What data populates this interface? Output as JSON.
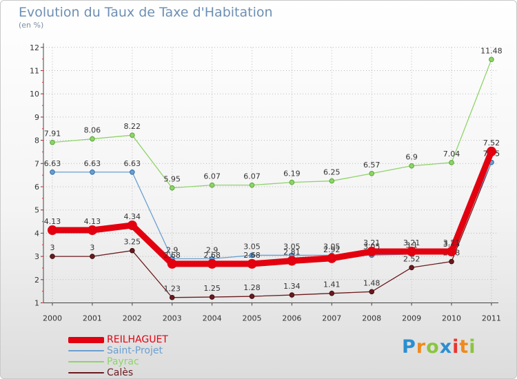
{
  "header": {
    "title": "Evolution du Taux de Taxe d'Habitation",
    "unit": "(en %)"
  },
  "brand": {
    "text": "Proxiti",
    "letters": [
      "P",
      "r",
      "o",
      "x",
      "i",
      "t",
      "i"
    ],
    "colors": [
      "#2a8fd1",
      "#ef8a1c",
      "#8bc53f",
      "#2a8fd1",
      "#e8362e",
      "#ef8a1c",
      "#8bc53f"
    ]
  },
  "chart_data": {
    "type": "line",
    "title": "Evolution du Taux de Taxe d'Habitation",
    "ylabel": "(en %)",
    "xlabel": "",
    "x": [
      "2000",
      "2001",
      "2002",
      "2003",
      "2004",
      "2005",
      "2006",
      "2007",
      "2008",
      "2009",
      "2010",
      "2011"
    ],
    "ylim": [
      1,
      12
    ],
    "yticks": [
      1,
      2,
      3,
      4,
      5,
      6,
      7,
      8,
      9,
      10,
      11,
      12
    ],
    "grid": true,
    "legend": "bottom-left",
    "series": [
      {
        "name": "REILHAGUET",
        "color": "#e3000f",
        "values": [
          4.13,
          4.13,
          4.34,
          2.68,
          2.68,
          2.68,
          2.81,
          2.92,
          3.21,
          3.21,
          3.21,
          7.52
        ]
      },
      {
        "name": "Saint-Projet",
        "color": "#6a9fd1",
        "values": [
          6.63,
          6.63,
          6.63,
          2.9,
          2.9,
          3.05,
          3.05,
          3.05,
          3.05,
          3.1,
          3.15,
          7.05
        ]
      },
      {
        "name": "Payrac",
        "color": "#8ed468",
        "values": [
          7.91,
          8.06,
          8.22,
          5.95,
          6.07,
          6.07,
          6.19,
          6.25,
          6.57,
          6.9,
          7.04,
          11.48
        ]
      },
      {
        "name": "Calès",
        "color": "#6b1a1e",
        "values": [
          3,
          3,
          3.25,
          1.23,
          1.25,
          1.28,
          1.34,
          1.41,
          1.48,
          2.52,
          2.78,
          7.05
        ]
      }
    ]
  }
}
